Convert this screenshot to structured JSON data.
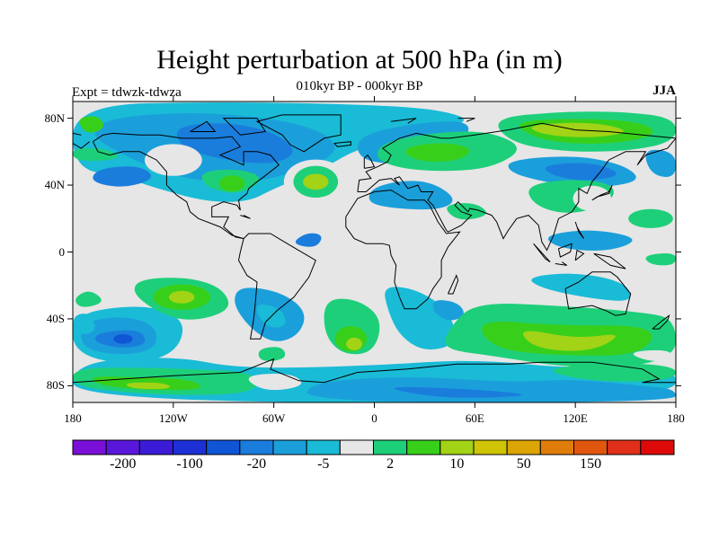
{
  "title": "Height perturbation at 500 hPa (in m)",
  "subtitle": "010kyr BP - 000kyr BP",
  "experiment": "Expt = tdwzk-tdwza",
  "season": "JJA",
  "map_data": {
    "projection": "cylindrical-equidistant",
    "lon_range": [
      -180,
      180
    ],
    "lat_range": [
      -90,
      90
    ],
    "lat_ticks": [
      "80N",
      "40N",
      "0",
      "40S",
      "80S"
    ],
    "lat_tick_values": [
      80,
      40,
      0,
      -40,
      -80
    ],
    "lon_ticks": [
      "180",
      "120W",
      "60W",
      "0",
      "60E",
      "120E",
      "180"
    ],
    "lon_tick_values": [
      -180,
      -120,
      -60,
      0,
      60,
      120,
      180
    ],
    "background_color": "#e6e6e6",
    "coastline_color": "#000000"
  },
  "colorbar": {
    "colors": [
      "#7a10d8",
      "#5a17dc",
      "#3b1bd8",
      "#1d30d6",
      "#0f55d6",
      "#1a7ddc",
      "#1b9fda",
      "#1abbd6",
      "#e6e6e6",
      "#1ecf7a",
      "#38cf1b",
      "#a2d316",
      "#cfc406",
      "#dca505",
      "#e07d0a",
      "#e0560f",
      "#e0301a",
      "#de0a0a"
    ],
    "labels": [
      "-200",
      "-100",
      "-20",
      "-5",
      "2",
      "10",
      "50",
      "150"
    ],
    "label_boundary_index": [
      1,
      3,
      5,
      7,
      9,
      11,
      13,
      15
    ]
  }
}
